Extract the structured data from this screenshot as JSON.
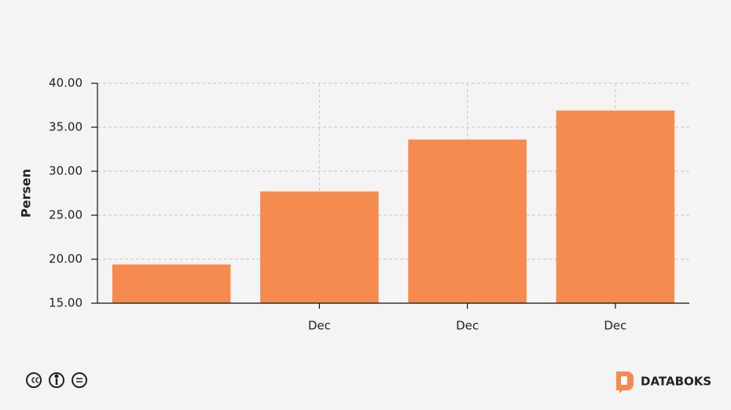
{
  "chart_data": {
    "type": "bar",
    "y_label": "Persen",
    "categories": [
      null,
      "Dec",
      "Dec",
      "Dec"
    ],
    "values": [
      19.4,
      27.7,
      33.6,
      36.9
    ],
    "color": "#f58b4f",
    "ylim": [
      15,
      40
    ],
    "yticks": [
      {
        "value": 15,
        "label": "15.00"
      },
      {
        "value": 20,
        "label": "20.00"
      },
      {
        "value": 25,
        "label": "25.00"
      },
      {
        "value": 30,
        "label": "30.00"
      },
      {
        "value": 35,
        "label": "35.00"
      },
      {
        "value": 40,
        "label": "40.00"
      }
    ],
    "grid": true
  },
  "footer": {
    "brand": "DATABOKS"
  }
}
